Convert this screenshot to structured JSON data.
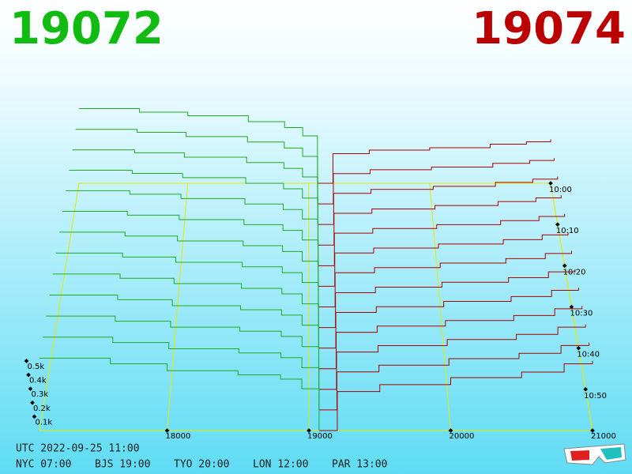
{
  "chart_data": {
    "type": "depth3d",
    "bid_label": "19072",
    "ask_label": "19074",
    "xlim": [
      17100,
      21000
    ],
    "xticks": [
      18000,
      19000,
      20000,
      21000
    ],
    "ylim": [
      0,
      650
    ],
    "yticks": [
      {
        "value": 100,
        "label": "0.1k"
      },
      {
        "value": 200,
        "label": "0.2k"
      },
      {
        "value": 300,
        "label": "0.3k"
      },
      {
        "value": 400,
        "label": "0.4k"
      },
      {
        "value": 500,
        "label": "0.5k"
      }
    ],
    "tlim": [
      0,
      60
    ],
    "tticks": [
      {
        "value": 0,
        "label": "10:00"
      },
      {
        "value": 10,
        "label": "10:10"
      },
      {
        "value": 20,
        "label": "10:20"
      },
      {
        "value": 30,
        "label": "10:30"
      },
      {
        "value": 40,
        "label": "10:40"
      },
      {
        "value": 50,
        "label": "10:50"
      }
    ],
    "times": [
      0,
      5,
      10,
      15,
      20,
      25,
      30,
      35,
      40,
      45,
      50,
      55,
      60
    ],
    "series": [
      {
        "color": "#22aa22",
        "prices": [
          17100,
          17600,
          18000,
          18500,
          18800,
          18950,
          19072
        ],
        "depths": [
          [
            630,
            600,
            570,
            520,
            470,
            400,
            0
          ],
          [
            620,
            595,
            560,
            515,
            465,
            395,
            0
          ],
          [
            612,
            588,
            552,
            508,
            460,
            390,
            0
          ],
          [
            605,
            580,
            545,
            500,
            455,
            380,
            0
          ],
          [
            598,
            570,
            535,
            492,
            448,
            372,
            0
          ],
          [
            590,
            560,
            525,
            485,
            440,
            365,
            0
          ],
          [
            580,
            550,
            512,
            475,
            430,
            355,
            0
          ],
          [
            570,
            540,
            500,
            465,
            420,
            345,
            0
          ],
          [
            560,
            528,
            488,
            452,
            410,
            335,
            0
          ],
          [
            550,
            515,
            470,
            440,
            400,
            325,
            0
          ],
          [
            540,
            502,
            458,
            428,
            390,
            315,
            0
          ],
          [
            530,
            490,
            445,
            415,
            380,
            308,
            0
          ],
          [
            520,
            480,
            430,
            400,
            370,
            300,
            0
          ]
        ]
      },
      {
        "color": "#aa0000",
        "prices": [
          19074,
          19200,
          19500,
          20000,
          20500,
          20800,
          21000
        ],
        "depths": [
          [
            0,
            250,
            280,
            300,
            330,
            350,
            370
          ],
          [
            0,
            252,
            284,
            306,
            337,
            361,
            381
          ],
          [
            0,
            255,
            288,
            313,
            345,
            372,
            392
          ],
          [
            0,
            257,
            292,
            320,
            352,
            382,
            403
          ],
          [
            0,
            260,
            297,
            327,
            360,
            393,
            413
          ],
          [
            0,
            262,
            301,
            333,
            367,
            404,
            424
          ],
          [
            0,
            265,
            305,
            340,
            375,
            415,
            435
          ],
          [
            0,
            267,
            309,
            347,
            382,
            426,
            446
          ],
          [
            0,
            270,
            313,
            353,
            390,
            437,
            457
          ],
          [
            0,
            272,
            318,
            360,
            397,
            447,
            468
          ],
          [
            0,
            275,
            322,
            367,
            405,
            458,
            478
          ],
          [
            0,
            277,
            326,
            373,
            412,
            469,
            489
          ],
          [
            0,
            280,
            330,
            380,
            420,
            480,
            500
          ]
        ]
      }
    ]
  },
  "footer": [
    "UTC 2022-09-25 11:00",
    "NYC 07:00",
    "BJS 19:00",
    "TYO 20:00",
    "LON 12:00",
    "PAR 13:00"
  ]
}
